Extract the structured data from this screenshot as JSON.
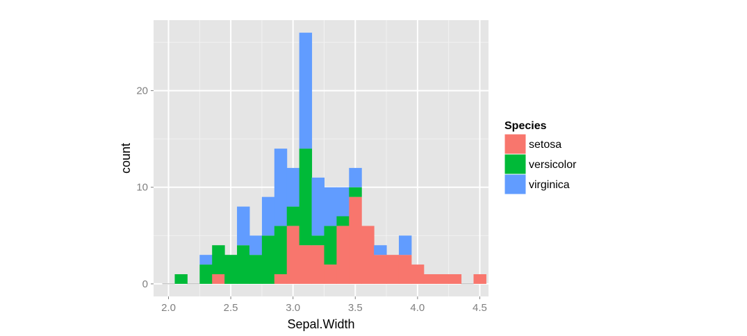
{
  "chart_data": {
    "type": "bar",
    "stacked": true,
    "xlabel": "Sepal.Width",
    "ylabel": "count",
    "bin_width": 0.1,
    "bin_starts": [
      1.95,
      2.05,
      2.15,
      2.25,
      2.35,
      2.45,
      2.55,
      2.65,
      2.75,
      2.85,
      2.95,
      3.05,
      3.15,
      3.25,
      3.35,
      3.45,
      3.55,
      3.65,
      3.75,
      3.85,
      3.95,
      4.05,
      4.15,
      4.25,
      4.35,
      4.45
    ],
    "series": [
      {
        "name": "setosa",
        "color": "#F8766D",
        "values": [
          0,
          0,
          0,
          0,
          1,
          0,
          0,
          0,
          0,
          1,
          6,
          4,
          4,
          2,
          6,
          9,
          6,
          3,
          3,
          3,
          2,
          1,
          1,
          1,
          0,
          1
        ]
      },
      {
        "name": "versicolor",
        "color": "#00BA38",
        "values": [
          0,
          1,
          0,
          2,
          3,
          3,
          4,
          3,
          5,
          5,
          2,
          10,
          1,
          4,
          1,
          1,
          0,
          0,
          0,
          0,
          0,
          0,
          0,
          0,
          0,
          0
        ]
      },
      {
        "name": "virginica",
        "color": "#619CFF",
        "values": [
          0,
          0,
          0,
          1,
          0,
          0,
          4,
          2,
          4,
          8,
          4,
          12,
          6,
          4,
          3,
          2,
          0,
          1,
          0,
          2,
          0,
          0,
          0,
          0,
          0,
          0
        ]
      }
    ],
    "xlim": [
      1.88,
      4.57
    ],
    "ylim": [
      -1.3,
      27.3
    ],
    "x_ticks": [
      2.0,
      2.5,
      3.0,
      3.5,
      4.0,
      4.5
    ],
    "x_tick_labels": [
      "2.0",
      "2.5",
      "3.0",
      "3.5",
      "4.0",
      "4.5"
    ],
    "y_ticks": [
      0,
      10,
      20
    ],
    "y_tick_labels": [
      "0",
      "10",
      "20"
    ],
    "grid": true,
    "legend": {
      "title": "Species",
      "position": "right"
    }
  }
}
